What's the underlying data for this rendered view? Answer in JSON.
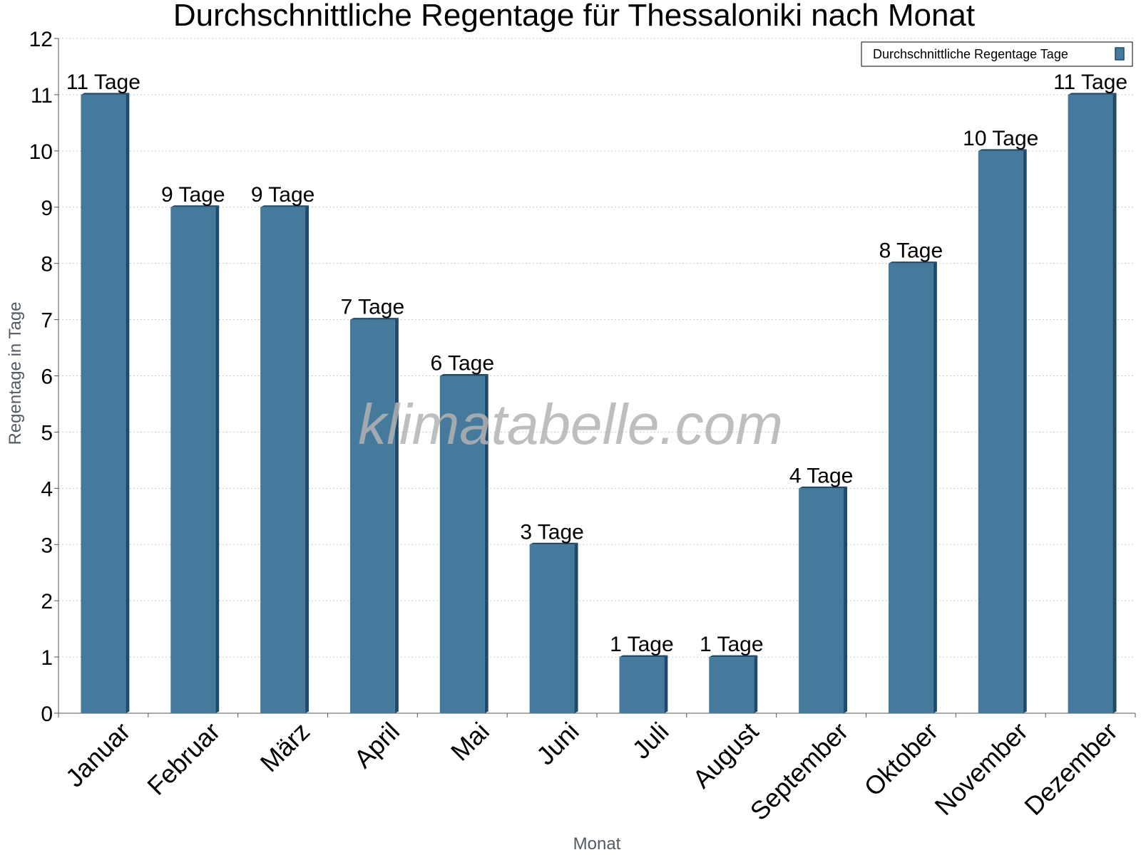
{
  "watermark": "klimatabelle.com",
  "colors": {
    "bar": "#467a9c",
    "bar_dark": "#1e4b6c",
    "grid": "#c8c8c8",
    "axis": "#555555"
  },
  "chart_data": {
    "type": "bar",
    "title": "Durchschnittliche Regentage für Thessaloniki nach Monat",
    "xlabel": "Monat",
    "ylabel": "Regentage in Tage",
    "ylim": [
      0,
      12
    ],
    "yticks": [
      "0",
      "1",
      "2",
      "3",
      "4",
      "5",
      "6",
      "7",
      "8",
      "9",
      "10",
      "11",
      "12"
    ],
    "grid": true,
    "legend_position": "top-right",
    "categories": [
      "Januar",
      "Februar",
      "März",
      "April",
      "Mai",
      "Juni",
      "Juli",
      "August",
      "September",
      "Oktober",
      "November",
      "Dezember"
    ],
    "series": [
      {
        "name": "Durchschnittliche Regentage Tage",
        "values": [
          11,
          9,
          9,
          7,
          6,
          3,
          1,
          1,
          4,
          8,
          10,
          11
        ],
        "labels": [
          "11 Tage",
          "9 Tage",
          "9 Tage",
          "7 Tage",
          "6 Tage",
          "3 Tage",
          "1 Tage",
          "1 Tage",
          "4 Tage",
          "8 Tage",
          "10 Tage",
          "11 Tage"
        ]
      }
    ]
  }
}
